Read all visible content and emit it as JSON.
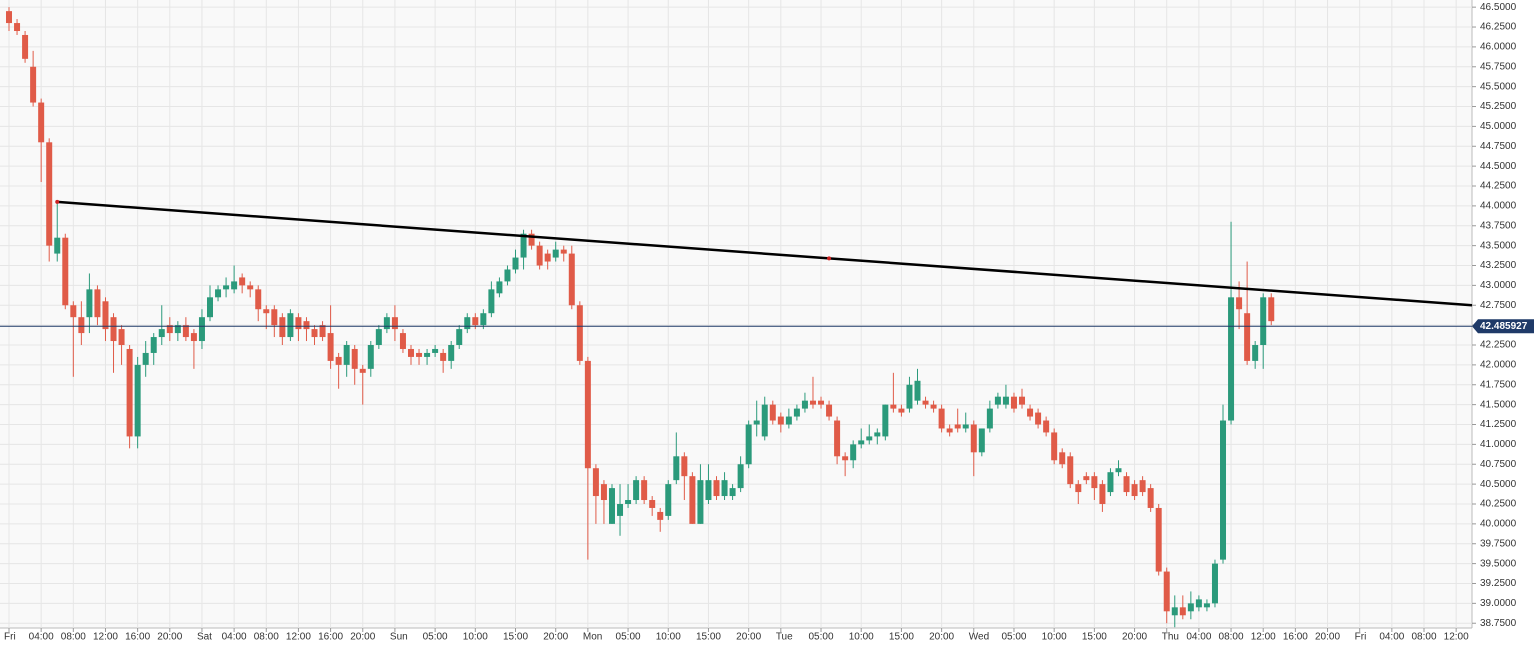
{
  "chart_data": {
    "type": "candlestick",
    "x": [
      0,
      1,
      2,
      3,
      4,
      5,
      6,
      7,
      8,
      9,
      10,
      11,
      12,
      13,
      14,
      15,
      16,
      17,
      18,
      19,
      20,
      21,
      22,
      23,
      24,
      25,
      26,
      27,
      28,
      29,
      30,
      31,
      32,
      33,
      34,
      35,
      36,
      37,
      38,
      39,
      40,
      41,
      42,
      43,
      44,
      45,
      46,
      47,
      48,
      49,
      50,
      51,
      52,
      53,
      54,
      55,
      56,
      57,
      58,
      59,
      60,
      61,
      62,
      63,
      64,
      65,
      66,
      67,
      68,
      69,
      70,
      71,
      72,
      73,
      74,
      75,
      76,
      77,
      78,
      79,
      80,
      81,
      82,
      83,
      84,
      85,
      86,
      87,
      88,
      89,
      90,
      91,
      92,
      93,
      94,
      95,
      96,
      97,
      98,
      99,
      100,
      101,
      102,
      103,
      104,
      105,
      106,
      107,
      108,
      109,
      110,
      111,
      112,
      113,
      114,
      115,
      116,
      117,
      118,
      119,
      120,
      121,
      122,
      123,
      124,
      125,
      126,
      127,
      128,
      129,
      130,
      131,
      132,
      133,
      134,
      135,
      136,
      137,
      138,
      139,
      140,
      141,
      142,
      143,
      144,
      145,
      146,
      147,
      148,
      149,
      150,
      151,
      152,
      153,
      154,
      155,
      156,
      157
    ],
    "open": [
      46.45,
      46.3,
      46.15,
      45.75,
      45.3,
      44.8,
      43.4,
      43.6,
      42.75,
      42.6,
      42.6,
      42.95,
      42.8,
      42.6,
      42.45,
      42.2,
      41.1,
      42.0,
      42.15,
      42.35,
      42.5,
      42.4,
      42.5,
      42.4,
      42.3,
      42.6,
      42.85,
      42.95,
      42.95,
      43.1,
      43.0,
      42.95,
      42.7,
      42.7,
      42.6,
      42.35,
      42.6,
      42.55,
      42.45,
      42.5,
      42.4,
      42.1,
      42.0,
      42.2,
      41.95,
      41.95,
      42.25,
      42.45,
      42.6,
      42.4,
      42.2,
      42.15,
      42.1,
      42.15,
      42.15,
      42.05,
      42.25,
      42.45,
      42.6,
      42.5,
      42.65,
      42.9,
      43.05,
      43.2,
      43.35,
      43.65,
      43.5,
      43.4,
      43.35,
      43.45,
      43.4,
      42.75,
      42.05,
      40.7,
      40.5,
      40.0,
      40.1,
      40.25,
      40.3,
      40.55,
      40.3,
      40.15,
      40.1,
      40.55,
      40.85,
      40.6,
      40.0,
      40.3,
      40.55,
      40.35,
      40.35,
      40.45,
      40.75,
      41.25,
      41.1,
      41.5,
      41.35,
      41.25,
      41.35,
      41.45,
      41.55,
      41.55,
      41.5,
      41.3,
      40.85,
      40.8,
      41.0,
      41.05,
      41.1,
      41.1,
      41.5,
      41.45,
      41.45,
      41.55,
      41.55,
      41.5,
      41.45,
      41.2,
      41.25,
      41.2,
      41.25,
      40.9,
      41.2,
      41.5,
      41.5,
      41.6,
      41.6,
      41.45,
      41.4,
      41.3,
      41.15,
      40.9,
      40.85,
      40.5,
      40.6,
      40.6,
      40.5,
      40.4,
      40.65,
      40.6,
      40.5,
      40.55,
      40.45,
      40.2,
      39.4,
      38.85,
      38.95,
      38.9,
      38.95,
      38.95,
      39.0,
      39.55,
      41.3,
      42.85,
      42.65,
      42.05,
      42.25,
      42.85
    ],
    "high": [
      46.5,
      46.35,
      46.2,
      45.95,
      45.35,
      44.85,
      44.05,
      43.65,
      42.8,
      42.8,
      43.15,
      43.0,
      42.85,
      42.65,
      42.5,
      42.25,
      42.1,
      42.3,
      42.4,
      42.75,
      42.6,
      42.55,
      42.6,
      42.45,
      42.7,
      43.0,
      43.0,
      43.1,
      43.25,
      43.15,
      43.05,
      43.0,
      42.75,
      42.75,
      42.65,
      42.7,
      42.65,
      42.6,
      42.5,
      42.55,
      42.75,
      42.15,
      42.3,
      42.25,
      42.0,
      42.3,
      42.5,
      42.65,
      42.75,
      42.45,
      42.25,
      42.2,
      42.2,
      42.25,
      42.2,
      42.3,
      42.5,
      42.65,
      42.65,
      42.7,
      43.05,
      43.1,
      43.25,
      43.45,
      43.7,
      43.7,
      43.55,
      43.45,
      43.55,
      43.5,
      43.5,
      42.8,
      42.1,
      40.75,
      40.55,
      40.5,
      40.5,
      40.5,
      40.6,
      40.6,
      40.35,
      40.2,
      40.55,
      41.15,
      40.9,
      40.65,
      40.75,
      40.75,
      40.6,
      40.65,
      40.5,
      40.85,
      41.3,
      41.55,
      41.6,
      41.55,
      41.4,
      41.45,
      41.5,
      41.65,
      41.85,
      41.6,
      41.55,
      41.35,
      40.9,
      41.05,
      41.2,
      41.25,
      41.2,
      41.5,
      41.9,
      41.5,
      41.85,
      41.95,
      41.6,
      41.55,
      41.5,
      41.25,
      41.45,
      41.4,
      41.3,
      41.2,
      41.55,
      41.65,
      41.75,
      41.65,
      41.7,
      41.5,
      41.45,
      41.35,
      41.2,
      40.95,
      40.9,
      40.55,
      40.65,
      40.65,
      40.55,
      40.7,
      40.8,
      40.65,
      40.55,
      40.6,
      40.5,
      40.25,
      39.45,
      39.1,
      39.1,
      39.15,
      39.1,
      39.05,
      39.55,
      41.5,
      43.8,
      43.05,
      43.3,
      42.3,
      42.9,
      42.9
    ],
    "low": [
      46.2,
      46.15,
      45.8,
      45.25,
      44.3,
      43.3,
      43.3,
      42.7,
      41.85,
      42.25,
      42.4,
      42.5,
      42.3,
      41.9,
      42.0,
      40.95,
      40.95,
      41.85,
      42.0,
      42.25,
      42.3,
      42.3,
      42.3,
      41.95,
      42.2,
      42.55,
      42.8,
      42.85,
      42.9,
      42.9,
      42.85,
      42.55,
      42.45,
      42.35,
      42.25,
      42.3,
      42.3,
      42.3,
      42.25,
      42.3,
      41.95,
      41.7,
      41.85,
      41.75,
      41.5,
      41.85,
      42.2,
      42.4,
      42.3,
      42.15,
      42.0,
      42.0,
      42.0,
      42.1,
      41.9,
      41.95,
      42.2,
      42.4,
      42.45,
      42.45,
      42.6,
      42.85,
      43.0,
      43.15,
      43.2,
      43.45,
      43.2,
      43.2,
      43.3,
      43.3,
      42.7,
      42.0,
      39.55,
      40.0,
      40.0,
      40.0,
      39.85,
      40.2,
      40.25,
      40.25,
      40.1,
      39.9,
      40.05,
      40.5,
      40.3,
      40.0,
      40.0,
      40.25,
      40.3,
      40.3,
      40.3,
      40.4,
      40.7,
      41.1,
      41.05,
      41.25,
      41.15,
      41.2,
      41.3,
      41.4,
      41.45,
      41.45,
      41.3,
      40.75,
      40.6,
      40.7,
      40.95,
      41.0,
      41.0,
      41.05,
      41.4,
      41.35,
      41.4,
      41.5,
      41.45,
      41.4,
      41.15,
      41.1,
      41.15,
      41.15,
      40.6,
      40.85,
      41.15,
      41.45,
      41.45,
      41.4,
      41.45,
      41.3,
      41.2,
      41.1,
      40.75,
      40.7,
      40.45,
      40.25,
      40.5,
      40.3,
      40.15,
      40.35,
      40.6,
      40.35,
      40.3,
      40.35,
      40.15,
      39.35,
      38.75,
      38.7,
      38.8,
      38.8,
      38.9,
      38.9,
      38.95,
      39.5,
      41.25,
      42.45,
      42.0,
      41.95,
      41.95,
      42.5
    ],
    "close": [
      46.3,
      46.2,
      45.85,
      45.3,
      44.8,
      43.5,
      43.6,
      42.75,
      42.6,
      42.4,
      42.95,
      42.6,
      42.45,
      42.3,
      42.25,
      41.1,
      42.0,
      42.15,
      42.35,
      42.45,
      42.4,
      42.5,
      42.35,
      42.3,
      42.6,
      42.85,
      42.95,
      43.0,
      43.05,
      43.0,
      42.95,
      42.7,
      42.65,
      42.5,
      42.35,
      42.65,
      42.45,
      42.45,
      42.35,
      42.35,
      42.05,
      42.0,
      42.25,
      41.95,
      41.9,
      42.25,
      42.45,
      42.6,
      42.45,
      42.2,
      42.1,
      42.1,
      42.15,
      42.2,
      42.05,
      42.25,
      42.45,
      42.6,
      42.5,
      42.65,
      42.95,
      43.05,
      43.2,
      43.35,
      43.65,
      43.5,
      43.25,
      43.3,
      43.45,
      43.4,
      42.75,
      42.05,
      40.7,
      40.35,
      40.3,
      40.45,
      40.25,
      40.3,
      40.55,
      40.3,
      40.2,
      40.05,
      40.5,
      40.85,
      40.6,
      40.0,
      40.55,
      40.55,
      40.35,
      40.55,
      40.45,
      40.75,
      41.25,
      41.3,
      41.5,
      41.3,
      41.25,
      41.35,
      41.45,
      41.55,
      41.5,
      41.5,
      41.35,
      40.85,
      40.8,
      41.0,
      41.05,
      41.1,
      41.15,
      41.5,
      41.45,
      41.4,
      41.75,
      41.8,
      41.5,
      41.45,
      41.2,
      41.15,
      41.2,
      41.25,
      40.9,
      41.2,
      41.45,
      41.6,
      41.6,
      41.45,
      41.5,
      41.35,
      41.25,
      41.15,
      40.8,
      40.75,
      40.5,
      40.4,
      40.55,
      40.45,
      40.25,
      40.65,
      40.7,
      40.4,
      40.35,
      40.4,
      40.2,
      39.4,
      38.9,
      38.95,
      38.85,
      39.0,
      39.05,
      39.0,
      39.5,
      41.3,
      42.85,
      42.7,
      42.05,
      42.25,
      42.85,
      42.55
    ],
    "up_color": "#2b9a7b",
    "down_color": "#e05b48",
    "xlim": [
      -1.12,
      181.97
    ],
    "ylim": [
      38.69,
      46.59
    ],
    "xticks": [
      {
        "value": 0,
        "label": "Fri"
      },
      {
        "value": 4,
        "label": "04:00"
      },
      {
        "value": 8,
        "label": "08:00"
      },
      {
        "value": 12,
        "label": "12:00"
      },
      {
        "value": 16,
        "label": "16:00"
      },
      {
        "value": 20,
        "label": "20:00"
      },
      {
        "value": 24,
        "label": "Sat"
      },
      {
        "value": 28,
        "label": "04:00"
      },
      {
        "value": 32,
        "label": "08:00"
      },
      {
        "value": 36,
        "label": "12:00"
      },
      {
        "value": 40,
        "label": "16:00"
      },
      {
        "value": 44,
        "label": "20:00"
      },
      {
        "value": 48,
        "label": "Sun"
      },
      {
        "value": 53,
        "label": "05:00"
      },
      {
        "value": 58,
        "label": "10:00"
      },
      {
        "value": 63,
        "label": "15:00"
      },
      {
        "value": 68,
        "label": "20:00"
      },
      {
        "value": 72,
        "label": "Mon"
      },
      {
        "value": 77,
        "label": "05:00"
      },
      {
        "value": 82,
        "label": "10:00"
      },
      {
        "value": 87,
        "label": "15:00"
      },
      {
        "value": 92,
        "label": "20:00"
      },
      {
        "value": 96,
        "label": "Tue"
      },
      {
        "value": 101,
        "label": "05:00"
      },
      {
        "value": 106,
        "label": "10:00"
      },
      {
        "value": 111,
        "label": "15:00"
      },
      {
        "value": 116,
        "label": "20:00"
      },
      {
        "value": 120,
        "label": "Wed"
      },
      {
        "value": 125,
        "label": "05:00"
      },
      {
        "value": 130,
        "label": "10:00"
      },
      {
        "value": 135,
        "label": "15:00"
      },
      {
        "value": 140,
        "label": "20:00"
      },
      {
        "value": 144,
        "label": "Thu"
      },
      {
        "value": 148,
        "label": "04:00"
      },
      {
        "value": 152,
        "label": "08:00"
      },
      {
        "value": 156,
        "label": "12:00"
      },
      {
        "value": 160,
        "label": "16:00"
      },
      {
        "value": 164,
        "label": "20:00"
      },
      {
        "value": 168,
        "label": "Fri"
      },
      {
        "value": 172,
        "label": "04:00"
      },
      {
        "value": 176,
        "label": "08:00"
      },
      {
        "value": 180,
        "label": "12:00"
      }
    ],
    "yticks": [
      {
        "value": 38.75,
        "label": "38.7500"
      },
      {
        "value": 39,
        "label": "39.0000"
      },
      {
        "value": 39.25,
        "label": "39.2500"
      },
      {
        "value": 39.5,
        "label": "39.5000"
      },
      {
        "value": 39.75,
        "label": "39.7500"
      },
      {
        "value": 40,
        "label": "40.0000"
      },
      {
        "value": 40.25,
        "label": "40.2500"
      },
      {
        "value": 40.5,
        "label": "40.5000"
      },
      {
        "value": 40.75,
        "label": "40.7500"
      },
      {
        "value": 41,
        "label": "41.0000"
      },
      {
        "value": 41.25,
        "label": "41.2500"
      },
      {
        "value": 41.5,
        "label": "41.5000"
      },
      {
        "value": 41.75,
        "label": "41.7500"
      },
      {
        "value": 42,
        "label": "42.0000"
      },
      {
        "value": 42.25,
        "label": "42.2500"
      },
      {
        "value": 42.5,
        "label": "42.5000"
      },
      {
        "value": 42.75,
        "label": "42.7500"
      },
      {
        "value": 43,
        "label": "43.0000"
      },
      {
        "value": 43.25,
        "label": "43.2500"
      },
      {
        "value": 43.5,
        "label": "43.5000"
      },
      {
        "value": 43.75,
        "label": "43.7500"
      },
      {
        "value": 44,
        "label": "44.0000"
      },
      {
        "value": 44.25,
        "label": "44.2500"
      },
      {
        "value": 44.5,
        "label": "44.5000"
      },
      {
        "value": 44.75,
        "label": "44.7500"
      },
      {
        "value": 45,
        "label": "45.0000"
      },
      {
        "value": 45.25,
        "label": "45.2500"
      },
      {
        "value": 45.5,
        "label": "45.5000"
      },
      {
        "value": 45.75,
        "label": "45.7500"
      },
      {
        "value": 46,
        "label": "46.0000"
      },
      {
        "value": 46.25,
        "label": "46.2500"
      },
      {
        "value": 46.5,
        "label": "46.5000"
      }
    ],
    "grid": true,
    "last_price": 42.485927,
    "last_price_color": "#1f3a68",
    "trendline": {
      "x": [
        6,
        102,
        181.97
      ],
      "y": [
        44.05,
        43.34,
        42.75
      ],
      "color": "#000000",
      "handle_color": "#cc2222"
    }
  }
}
